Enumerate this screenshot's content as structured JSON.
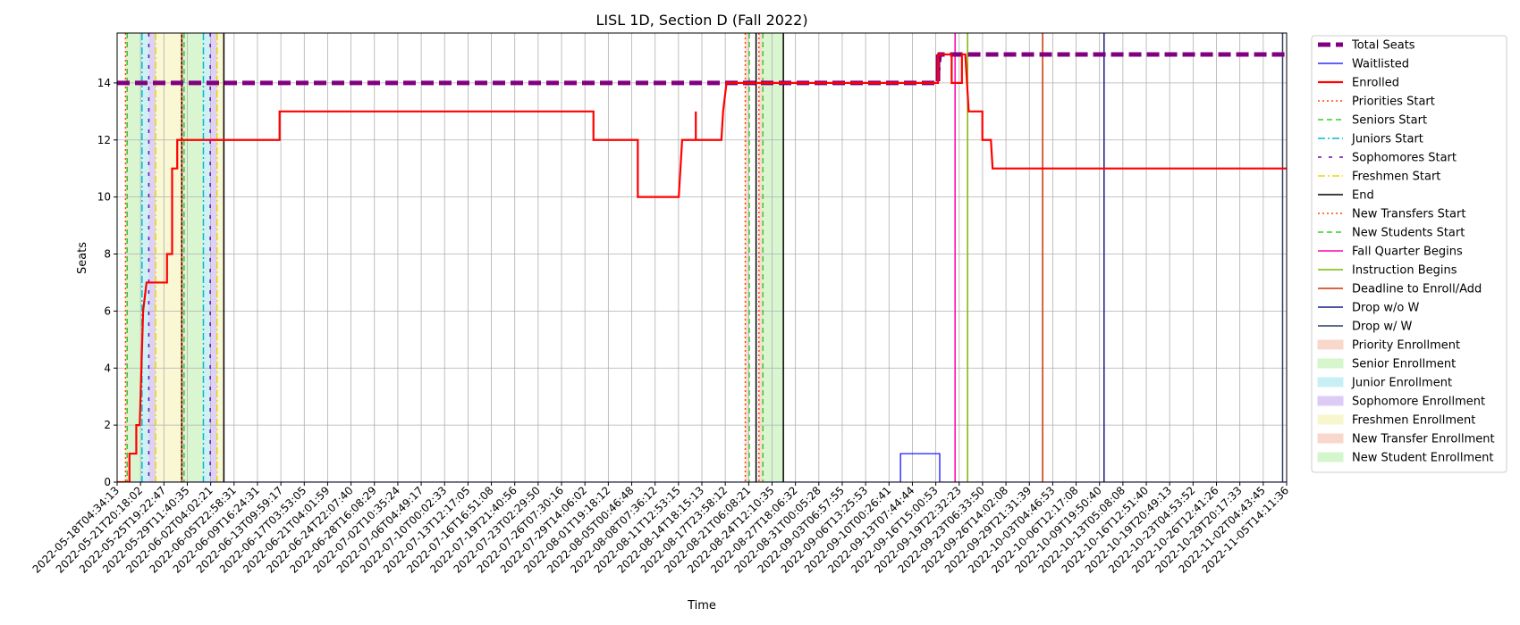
{
  "chart_data": {
    "type": "line",
    "title": "LISL 1D, Section D (Fall 2022)",
    "xlabel": "Time",
    "ylabel": "Seats",
    "ylim": [
      0,
      15.75
    ],
    "yticks": [
      0,
      2,
      4,
      6,
      8,
      10,
      12,
      14
    ],
    "x_start": "2022-05-18T04:34:13",
    "x_end": "2022-11-05T14:11:36",
    "xtick_labels": [
      "2022-05-18T04:34:13",
      "2022-05-21T20:18:02",
      "2022-05-25T19:22:47",
      "2022-05-29T11:40:35",
      "2022-06-02T04:02:21",
      "2022-06-05T22:58:31",
      "2022-06-09T16:24:31",
      "2022-06-13T09:59:17",
      "2022-06-17T03:53:05",
      "2022-06-21T04:01:59",
      "2022-06-24T22:07:40",
      "2022-06-28T16:08:29",
      "2022-07-02T10:35:24",
      "2022-07-06T04:49:17",
      "2022-07-10T00:02:33",
      "2022-07-13T12:17:05",
      "2022-07-16T16:51:08",
      "2022-07-19T21:40:56",
      "2022-07-23T02:29:50",
      "2022-07-26T07:30:16",
      "2022-07-29T14:06:02",
      "2022-08-01T19:18:12",
      "2022-08-05T00:46:48",
      "2022-08-08T07:36:12",
      "2022-08-11T12:53:15",
      "2022-08-14T18:15:13",
      "2022-08-17T23:58:12",
      "2022-08-21T06:08:21",
      "2022-08-24T12:10:35",
      "2022-08-27T18:06:32",
      "2022-08-31T00:05:28",
      "2022-09-03T06:57:55",
      "2022-09-06T13:25:53",
      "2022-09-10T00:26:41",
      "2022-09-13T07:44:44",
      "2022-09-16T15:00:53",
      "2022-09-19T22:32:23",
      "2022-09-23T06:33:50",
      "2022-09-26T14:02:08",
      "2022-09-29T21:31:39",
      "2022-10-03T04:46:53",
      "2022-10-06T12:17:08",
      "2022-10-09T19:50:40",
      "2022-10-13T05:08:08",
      "2022-10-16T12:51:40",
      "2022-10-19T20:49:13",
      "2022-10-23T04:53:52",
      "2022-10-26T12:41:26",
      "2022-10-29T20:17:33",
      "2022-11-02T04:43:45",
      "2022-11-05T14:11:36"
    ],
    "grid": true,
    "legend_placement": "outside-right",
    "legend": [
      {
        "label": "Total Seats",
        "kind": "line",
        "color": "#800080",
        "style": "dashed-thick"
      },
      {
        "label": "Waitlisted",
        "kind": "line",
        "color": "#0000ff",
        "style": "solid-thin"
      },
      {
        "label": "Enrolled",
        "kind": "line",
        "color": "#ff0000",
        "style": "solid-thick"
      },
      {
        "label": "Priorities Start",
        "kind": "line",
        "color": "#ff4500",
        "style": "dotted"
      },
      {
        "label": "Seniors Start",
        "kind": "line",
        "color": "#32cd32",
        "style": "dashed"
      },
      {
        "label": "Juniors Start",
        "kind": "line",
        "color": "#00bcd4",
        "style": "dashdot"
      },
      {
        "label": "Sophomores Start",
        "kind": "line",
        "color": "#6a0dad",
        "style": "loosedash"
      },
      {
        "label": "Freshmen Start",
        "kind": "line",
        "color": "#e6d800",
        "style": "dashdot"
      },
      {
        "label": "End",
        "kind": "line",
        "color": "#000000",
        "style": "solid"
      },
      {
        "label": "New Transfers Start",
        "kind": "line",
        "color": "#ff4500",
        "style": "dotted"
      },
      {
        "label": "New Students Start",
        "kind": "line",
        "color": "#32cd32",
        "style": "dashed"
      },
      {
        "label": "Fall Quarter Begins",
        "kind": "line",
        "color": "#ff00aa",
        "style": "solid"
      },
      {
        "label": "Instruction Begins",
        "kind": "line",
        "color": "#7cb800",
        "style": "solid"
      },
      {
        "label": "Deadline to Enroll/Add",
        "kind": "line",
        "color": "#cc3300",
        "style": "solid"
      },
      {
        "label": "Drop w/o W",
        "kind": "line",
        "color": "#1a1a8c",
        "style": "solid"
      },
      {
        "label": "Drop w/ W",
        "kind": "line",
        "color": "#2c3e66",
        "style": "solid"
      },
      {
        "label": "Priority Enrollment",
        "kind": "patch",
        "color": "#f9d8cc"
      },
      {
        "label": "Senior Enrollment",
        "kind": "patch",
        "color": "#d5f5cc"
      },
      {
        "label": "Junior Enrollment",
        "kind": "patch",
        "color": "#c8f0f4"
      },
      {
        "label": "Sophomore Enrollment",
        "kind": "patch",
        "color": "#dcccf5"
      },
      {
        "label": "Freshmen Enrollment",
        "kind": "patch",
        "color": "#f8f6cf"
      },
      {
        "label": "New Transfer Enrollment",
        "kind": "patch",
        "color": "#f9d8cc"
      },
      {
        "label": "New Student Enrollment",
        "kind": "patch",
        "color": "#d5f5cc"
      }
    ],
    "bands": [
      {
        "series": "Priority Enrollment",
        "from": "2022-05-19T10:00",
        "to": "2022-05-19T16:00",
        "color": "#f9d8cc"
      },
      {
        "series": "Senior Enrollment",
        "from": "2022-05-19T16:00",
        "to": "2022-05-21T20:00",
        "color": "#d5f5cc"
      },
      {
        "series": "Junior Enrollment",
        "from": "2022-05-21T20:00",
        "to": "2022-05-22T20:00",
        "color": "#c8f0f4"
      },
      {
        "series": "Sophomore Enrollment",
        "from": "2022-05-22T20:00",
        "to": "2022-05-23T20:00",
        "color": "#dcccf5"
      },
      {
        "series": "Freshmen Enrollment",
        "from": "2022-05-23T20:00",
        "to": "2022-05-27T16:00",
        "color": "#f8f6cf"
      },
      {
        "series": "Priority Enrollment",
        "from": "2022-05-27T16:00",
        "to": "2022-05-28T00:00",
        "color": "#f9d8cc"
      },
      {
        "series": "Senior Enrollment",
        "from": "2022-05-28T00:00",
        "to": "2022-05-30T20:00",
        "color": "#d5f5cc"
      },
      {
        "series": "Junior Enrollment",
        "from": "2022-05-30T20:00",
        "to": "2022-05-31T20:00",
        "color": "#c8f0f4"
      },
      {
        "series": "Sophomore Enrollment",
        "from": "2022-05-31T20:00",
        "to": "2022-06-01T20:00",
        "color": "#dcccf5"
      },
      {
        "series": "Freshmen Enrollment",
        "from": "2022-06-01T20:00",
        "to": "2022-06-02T20:00",
        "color": "#f8f6cf"
      },
      {
        "series": "New Transfer Enrollment",
        "from": "2022-08-18T06:00",
        "to": "2022-08-18T20:00",
        "color": "#f9d8cc"
      },
      {
        "series": "New Transfer Enrollment",
        "from": "2022-08-20T06:00",
        "to": "2022-08-20T20:00",
        "color": "#f9d8cc"
      },
      {
        "series": "New Student Enrollment",
        "from": "2022-08-20T20:00",
        "to": "2022-08-23T20:00",
        "color": "#d5f5cc"
      }
    ],
    "vlines": [
      {
        "series": "Priorities Start",
        "x": "2022-05-19T10:00"
      },
      {
        "series": "Seniors Start",
        "x": "2022-05-19T16:00"
      },
      {
        "series": "Juniors Start",
        "x": "2022-05-21T20:00"
      },
      {
        "series": "Sophomores Start",
        "x": "2022-05-22T20:00"
      },
      {
        "series": "Freshmen Start",
        "x": "2022-05-23T20:00"
      },
      {
        "series": "End",
        "x": "2022-05-27T16:00"
      },
      {
        "series": "Priorities Start",
        "x": "2022-05-27T16:00"
      },
      {
        "series": "Seniors Start",
        "x": "2022-05-28T00:00"
      },
      {
        "series": "Juniors Start",
        "x": "2022-05-30T20:00"
      },
      {
        "series": "Sophomores Start",
        "x": "2022-05-31T20:00"
      },
      {
        "series": "Freshmen Start",
        "x": "2022-06-01T20:00"
      },
      {
        "series": "End",
        "x": "2022-06-02T20:00"
      },
      {
        "series": "New Transfers Start",
        "x": "2022-08-18T06:00"
      },
      {
        "series": "New Students Start",
        "x": "2022-08-18T20:00"
      },
      {
        "series": "End",
        "x": "2022-08-19T20:00"
      },
      {
        "series": "New Transfers Start",
        "x": "2022-08-20T06:00"
      },
      {
        "series": "New Students Start",
        "x": "2022-08-20T20:00"
      },
      {
        "series": "End",
        "x": "2022-08-23T20:00"
      },
      {
        "series": "Fall Quarter Begins",
        "x": "2022-09-18T00:00"
      },
      {
        "series": "Instruction Begins",
        "x": "2022-09-19T20:00"
      },
      {
        "series": "Deadline to Enroll/Add",
        "x": "2022-09-30T20:00"
      },
      {
        "series": "Drop w/o W",
        "x": "2022-10-09T20:00"
      },
      {
        "series": "Drop w/ W",
        "x": "2022-11-05T00:00"
      }
    ],
    "series": [
      {
        "name": "Total Seats",
        "points": [
          [
            "2022-05-18T04:34",
            14
          ],
          [
            "2022-09-15T12:00",
            14
          ],
          [
            "2022-09-15T12:00",
            15
          ],
          [
            "2022-09-15T12:00",
            14.4
          ],
          [
            "2022-09-15T18:00",
            15
          ],
          [
            "2022-11-05T14:11",
            15
          ]
        ]
      },
      {
        "name": "Waitlisted",
        "points": [
          [
            "2022-05-18T04:34",
            0
          ],
          [
            "2022-09-10T00:00",
            0
          ],
          [
            "2022-09-10T00:00",
            1
          ],
          [
            "2022-09-15T18:00",
            1
          ],
          [
            "2022-09-15T18:00",
            0
          ],
          [
            "2022-11-05T14:11",
            0
          ]
        ]
      },
      {
        "name": "Enrolled",
        "points": [
          [
            "2022-05-18T04:34",
            0
          ],
          [
            "2022-05-20T00:00",
            0
          ],
          [
            "2022-05-20T00:00",
            1
          ],
          [
            "2022-05-21T00:00",
            1
          ],
          [
            "2022-05-21T00:00",
            2
          ],
          [
            "2022-05-21T12:00",
            2
          ],
          [
            "2022-05-22T00:00",
            6
          ],
          [
            "2022-05-22T12:00",
            7
          ],
          [
            "2022-05-25T12:00",
            7
          ],
          [
            "2022-05-25T12:00",
            8
          ],
          [
            "2022-05-26T06:00",
            8
          ],
          [
            "2022-05-26T06:00",
            11
          ],
          [
            "2022-05-27T00:00",
            11
          ],
          [
            "2022-05-27T00:00",
            12
          ],
          [
            "2022-06-11T00:00",
            12
          ],
          [
            "2022-06-11T00:00",
            13
          ],
          [
            "2022-07-27T00:00",
            13
          ],
          [
            "2022-07-27T00:00",
            12
          ],
          [
            "2022-08-02T12:00",
            12
          ],
          [
            "2022-08-02T12:00",
            10
          ],
          [
            "2022-08-08T12:00",
            10
          ],
          [
            "2022-08-09T00:00",
            12
          ],
          [
            "2022-08-11T00:00",
            12
          ],
          [
            "2022-08-11T00:00",
            13
          ],
          [
            "2022-08-11T00:00",
            12
          ],
          [
            "2022-08-14T18:00",
            12
          ],
          [
            "2022-08-15T00:00",
            13
          ],
          [
            "2022-08-15T12:00",
            14
          ],
          [
            "2022-09-15T12:00",
            14
          ],
          [
            "2022-09-15T12:00",
            15
          ],
          [
            "2022-09-17T12:00",
            15
          ],
          [
            "2022-09-17T12:00",
            14
          ],
          [
            "2022-09-19T00:00",
            14
          ],
          [
            "2022-09-19T00:00",
            15
          ],
          [
            "2022-09-19T12:00",
            15
          ],
          [
            "2022-09-20T00:00",
            13
          ],
          [
            "2022-09-22T00:00",
            13
          ],
          [
            "2022-09-22T00:00",
            12
          ],
          [
            "2022-09-23T06:00",
            12
          ],
          [
            "2022-09-23T12:00",
            11
          ],
          [
            "2022-11-05T14:11",
            11
          ]
        ]
      }
    ]
  }
}
